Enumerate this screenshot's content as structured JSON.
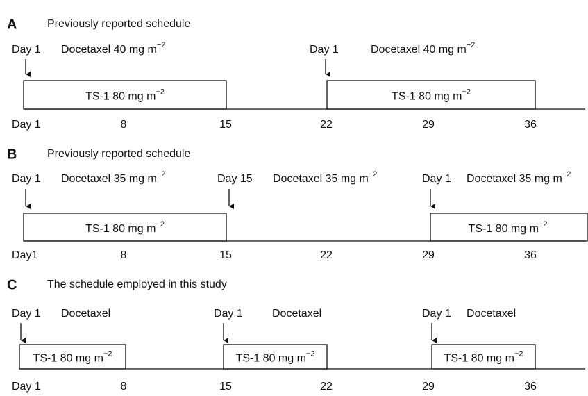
{
  "panels": [
    {
      "letter": "A",
      "title": "Previously reported schedule",
      "annotations": [
        {
          "day": "Day 1",
          "drug": "Docetaxel 40 mg m",
          "sup": "−2"
        },
        {
          "day": "Day 1",
          "drug": "Docetaxel 40 mg m",
          "sup": "−2"
        }
      ],
      "boxes": [
        {
          "text": "TS-1 80 mg m",
          "sup": "−2"
        },
        {
          "text": "TS-1 80 mg m",
          "sup": "−2"
        }
      ],
      "axis_labels": [
        "Day 1",
        "8",
        "15",
        "22",
        "29",
        "36"
      ]
    },
    {
      "letter": "B",
      "title": "Previously reported schedule",
      "annotations": [
        {
          "day": "Day 1",
          "drug": "Docetaxel 35 mg m",
          "sup": "−2"
        },
        {
          "day": "Day 15",
          "drug": "Docetaxel 35 mg m",
          "sup": "−2"
        },
        {
          "day": "Day 1",
          "drug": "Docetaxel 35 mg m",
          "sup": "−2"
        }
      ],
      "boxes": [
        {
          "text": "TS-1 80 mg m",
          "sup": "−2"
        },
        {
          "text": "TS-1 80 mg m",
          "sup": "−2"
        }
      ],
      "axis_labels": [
        "Day1",
        "8",
        "15",
        "22",
        "29",
        "36"
      ]
    },
    {
      "letter": "C",
      "title": "The schedule employed in this study",
      "annotations": [
        {
          "day": "Day 1",
          "drug": "Docetaxel"
        },
        {
          "day": "Day 1",
          "drug": "Docetaxel"
        },
        {
          "day": "Day 1",
          "drug": "Docetaxel"
        }
      ],
      "boxes": [
        {
          "text": "TS-1 80 mg m",
          "sup": "−2"
        },
        {
          "text": "TS-1 80 mg m",
          "sup": "−2"
        },
        {
          "text": "TS-1 80 mg m",
          "sup": "−2"
        }
      ],
      "axis_labels": [
        "Day 1",
        "8",
        "15",
        "22",
        "29",
        "36"
      ]
    }
  ]
}
